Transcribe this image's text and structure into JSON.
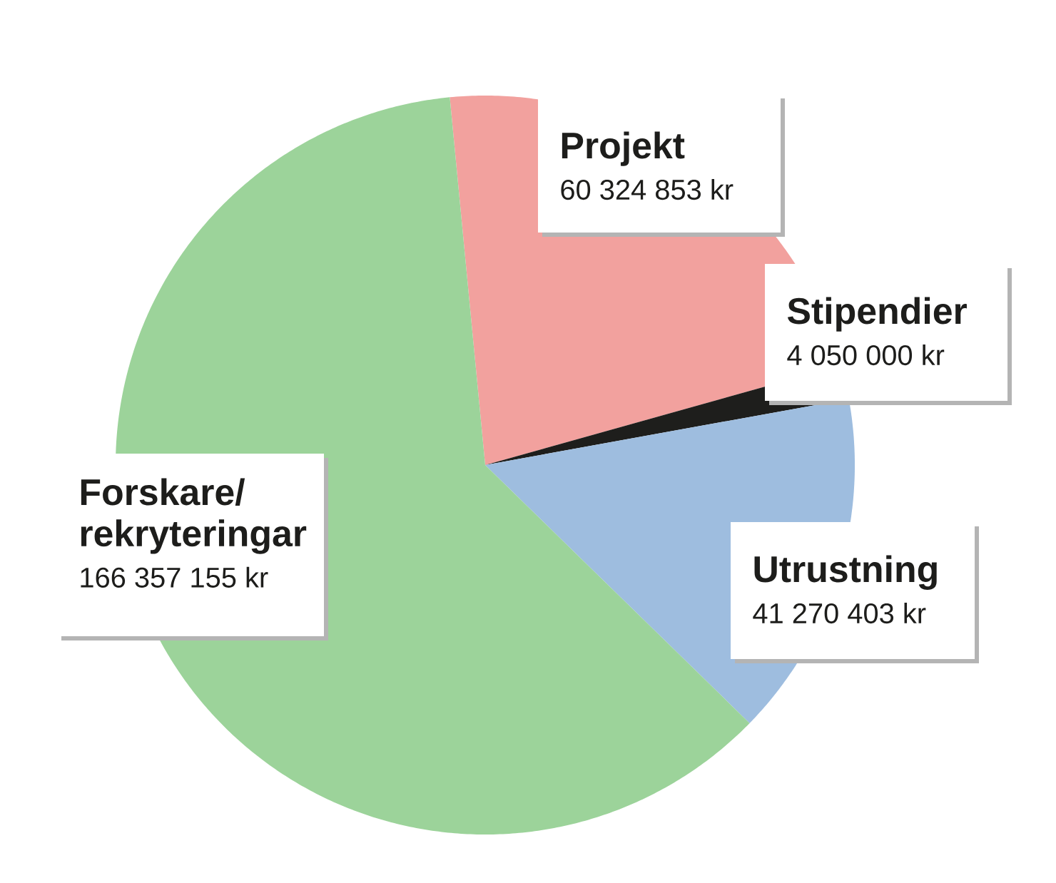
{
  "chart_data": {
    "type": "pie",
    "categories": [
      "Projekt",
      "Stipendier",
      "Utrustning",
      "Forskare/rekryteringar"
    ],
    "values": [
      60324853,
      4050000,
      41270403,
      166357155
    ],
    "colors": [
      "#f2a19e",
      "#1e1e1c",
      "#9ebddf",
      "#9cd39a"
    ],
    "value_labels": [
      "60 324 853 kr",
      "4 050 000 kr",
      "41 270 403 kr",
      "166 357 155 kr"
    ]
  }
}
